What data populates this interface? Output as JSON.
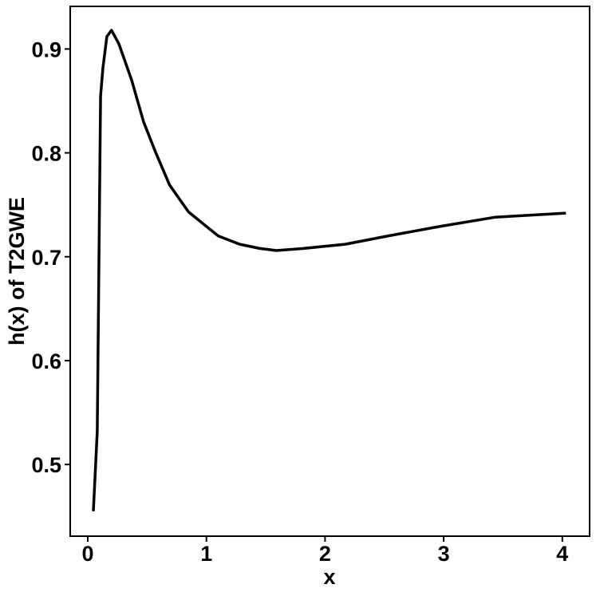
{
  "chart_data": {
    "type": "line",
    "x_label": "x",
    "y_label": "h(x) of T2GWE",
    "series": [
      {
        "name": "h(x)",
        "color": "#000000",
        "x": [
          0.047,
          0.08,
          0.108,
          0.128,
          0.161,
          0.2,
          0.262,
          0.37,
          0.47,
          0.57,
          0.69,
          0.85,
          1.1,
          1.28,
          1.45,
          1.59,
          1.82,
          2.17,
          2.53,
          2.96,
          3.43,
          4.03
        ],
        "values": [
          0.455,
          0.532,
          0.855,
          0.882,
          0.912,
          0.918,
          0.905,
          0.87,
          0.83,
          0.801,
          0.769,
          0.743,
          0.72,
          0.712,
          0.708,
          0.706,
          0.708,
          0.712,
          0.72,
          0.729,
          0.738,
          0.742
        ]
      }
    ],
    "xlim": [
      -0.148,
      4.23
    ],
    "xticks": [
      0,
      1,
      2,
      3,
      4
    ],
    "ylim": [
      0.431,
      0.941
    ],
    "yticks": [
      0.5,
      0.6,
      0.7,
      0.8,
      0.9
    ],
    "grid": false
  }
}
